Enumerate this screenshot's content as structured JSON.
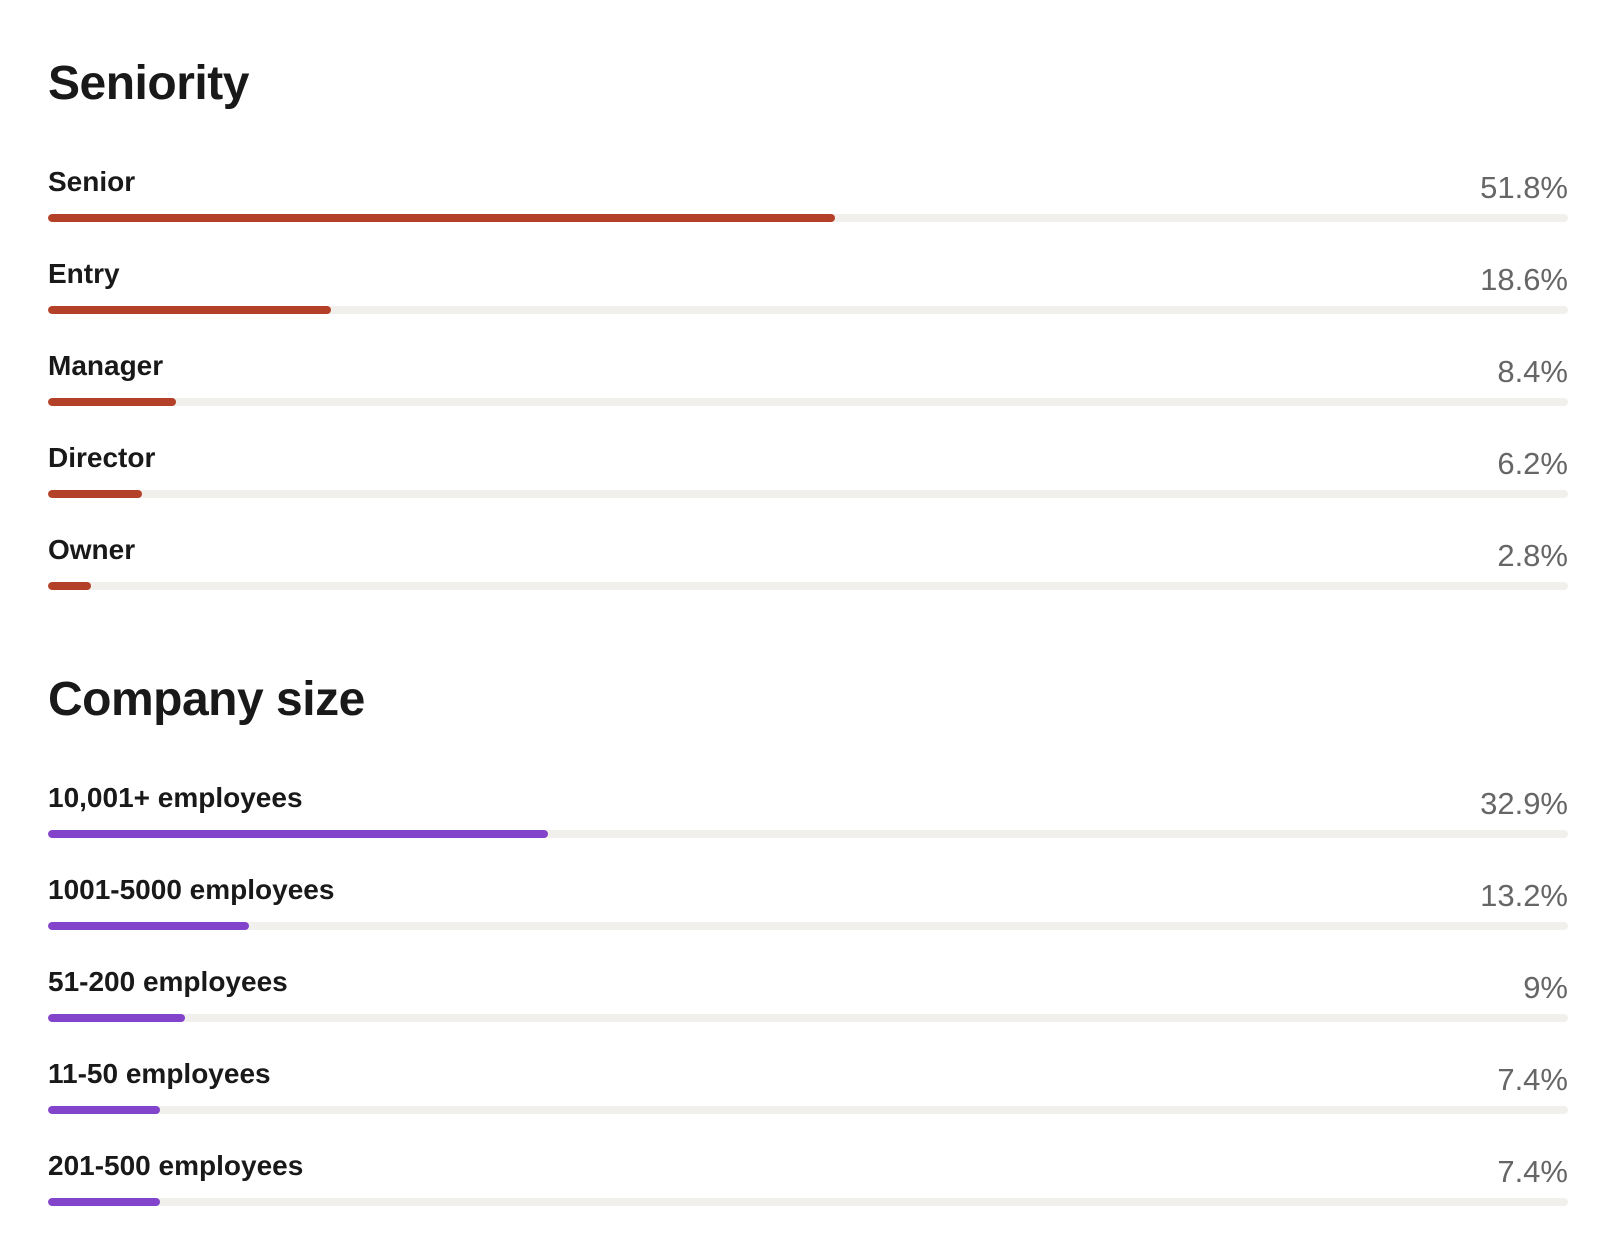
{
  "seniority": {
    "title": "Seniority",
    "bar_color": "#b44127",
    "items": [
      {
        "label": "Senior",
        "value_text": "51.8%",
        "percent": 51.8
      },
      {
        "label": "Entry",
        "value_text": "18.6%",
        "percent": 18.6
      },
      {
        "label": "Manager",
        "value_text": "8.4%",
        "percent": 8.4
      },
      {
        "label": "Director",
        "value_text": "6.2%",
        "percent": 6.2
      },
      {
        "label": "Owner",
        "value_text": "2.8%",
        "percent": 2.8
      }
    ]
  },
  "company_size": {
    "title": "Company size",
    "bar_color": "#8344cc",
    "items": [
      {
        "label": "10,001+ employees",
        "value_text": "32.9%",
        "percent": 32.9
      },
      {
        "label": "1001-5000 employees",
        "value_text": "13.2%",
        "percent": 13.2
      },
      {
        "label": "51-200 employees",
        "value_text": "9%",
        "percent": 9
      },
      {
        "label": "11-50 employees",
        "value_text": "7.4%",
        "percent": 7.4
      },
      {
        "label": "201-500 employees",
        "value_text": "7.4%",
        "percent": 7.4
      }
    ]
  }
}
